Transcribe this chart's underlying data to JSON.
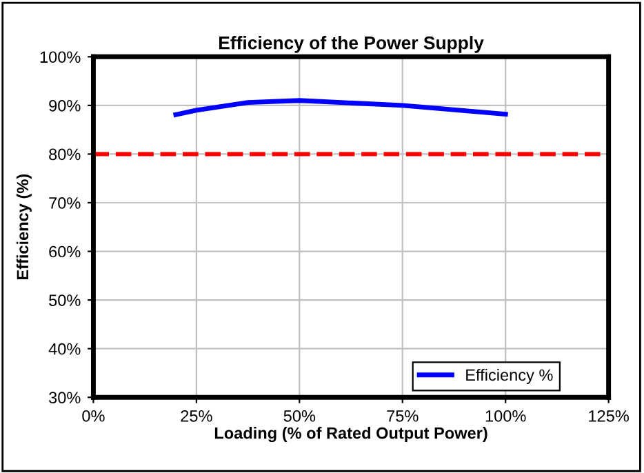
{
  "chart_data": {
    "type": "line",
    "title": "Efficiency of the Power Supply",
    "xlabel": "Loading (% of Rated Output Power)",
    "ylabel": "Efficiency (%)",
    "x": [
      20,
      25,
      37.5,
      50,
      75,
      100
    ],
    "series": [
      {
        "name": "Efficiency %",
        "color": "#0000ff",
        "values": [
          88.1,
          89.0,
          90.6,
          91.0,
          90.0,
          88.2
        ]
      }
    ],
    "xlim": [
      0,
      125
    ],
    "xticks": [
      {
        "value": 0,
        "label": "0%"
      },
      {
        "value": 25,
        "label": "25%"
      },
      {
        "value": 50,
        "label": "50%"
      },
      {
        "value": 75,
        "label": "75%"
      },
      {
        "value": 100,
        "label": "100%"
      },
      {
        "value": 125,
        "label": "125%"
      }
    ],
    "ylim": [
      30,
      100
    ],
    "yticks": [
      {
        "value": 30,
        "label": "30%"
      },
      {
        "value": 40,
        "label": "40%"
      },
      {
        "value": 50,
        "label": "50%"
      },
      {
        "value": 60,
        "label": "60%"
      },
      {
        "value": 70,
        "label": "70%"
      },
      {
        "value": 80,
        "label": "80%"
      },
      {
        "value": 90,
        "label": "90%"
      },
      {
        "value": 100,
        "label": "100%"
      }
    ],
    "ref_lines": [
      {
        "axis": "y",
        "value": 80,
        "color": "#ff0000",
        "line_style": "dashed"
      }
    ],
    "grid": true,
    "legend": "bottom right",
    "marker": "none",
    "line_style": "solid"
  }
}
